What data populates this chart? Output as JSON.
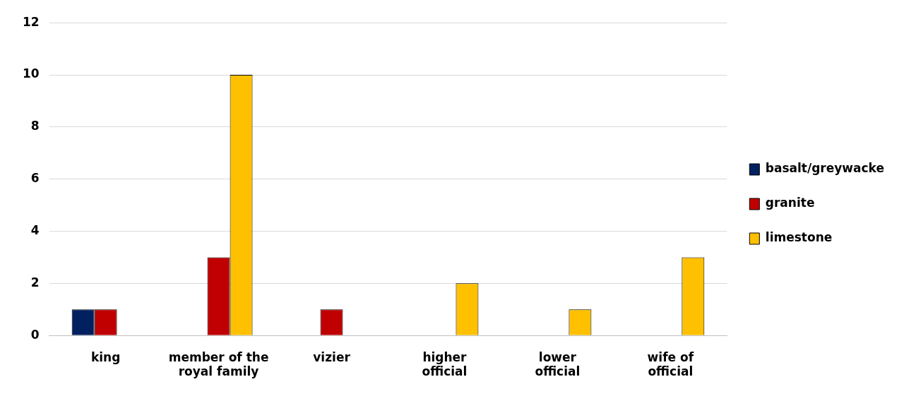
{
  "chart_data": {
    "type": "bar",
    "categories": [
      "king",
      "member of the royal family",
      "vizier",
      "higher official",
      "lower official",
      "wife of official"
    ],
    "series": [
      {
        "name": "basalt/greywacke",
        "color": "#002060",
        "values": [
          1,
          null,
          null,
          null,
          null,
          null
        ]
      },
      {
        "name": "granite",
        "color": "#c00000",
        "values": [
          1,
          3,
          1,
          null,
          null,
          null
        ]
      },
      {
        "name": "limestone",
        "color": "#ffc000",
        "values": [
          null,
          10,
          null,
          2,
          1,
          3
        ]
      }
    ],
    "ylim": [
      0,
      12
    ],
    "yticks": [
      0,
      2,
      4,
      6,
      8,
      10,
      12
    ],
    "grid": "y",
    "legend": "right"
  }
}
